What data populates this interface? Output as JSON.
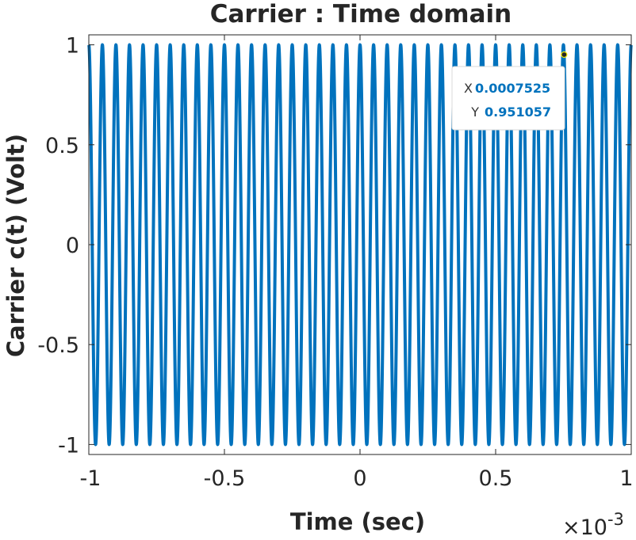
{
  "chart_data": {
    "type": "line",
    "title": "Carrier : Time domain",
    "xlabel": "Time (sec)",
    "ylabel": "Carrier c(t)  (Volt)",
    "x_exponent_label": "×10",
    "x_exponent_power": "-3",
    "xlim": [
      -0.001,
      0.001
    ],
    "ylim": [
      -1.05,
      1.05
    ],
    "x_ticks": [
      -0.001,
      -0.0005,
      0,
      0.0005,
      0.001
    ],
    "x_tick_labels": [
      "-1",
      "-0.5",
      "0",
      "0.5",
      "1"
    ],
    "y_ticks": [
      -1,
      -0.5,
      0,
      0.5,
      1
    ],
    "y_tick_labels": [
      "-1",
      "-0.5",
      "0",
      "0.5",
      "1"
    ],
    "series": [
      {
        "function": "cos",
        "amplitude": 1,
        "frequency_hz": 20000,
        "phase_rad": 0,
        "x_start": -0.001,
        "x_end": 0.001,
        "color": "#0072BD"
      }
    ],
    "grid": false,
    "datatip": {
      "x_key": "X",
      "x_value": "0.0007525",
      "y_key": "Y",
      "y_value": "0.951057",
      "x": 0.0007525,
      "y": 0.951057,
      "value_color": "#0072BD"
    }
  }
}
